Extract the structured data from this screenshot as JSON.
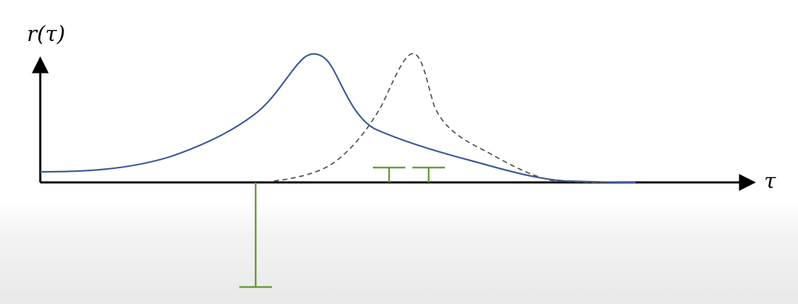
{
  "labels": {
    "y_axis": "r(τ)",
    "x_axis": "τ"
  },
  "colors": {
    "axis": "#000000",
    "solid_curve": "#3b5998",
    "dashed_curve": "#555555",
    "stems": "#6a9a3c"
  }
}
